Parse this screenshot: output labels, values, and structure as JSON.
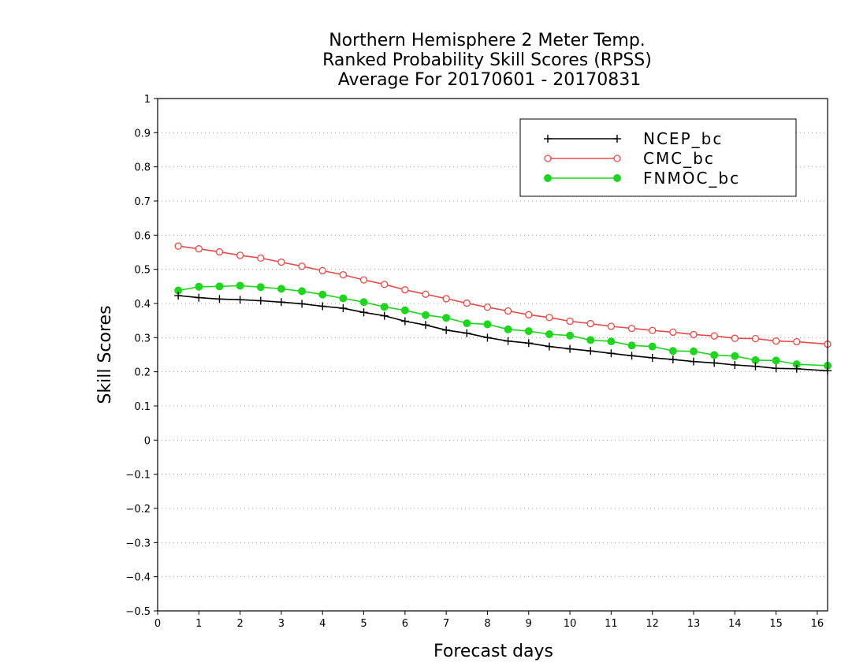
{
  "chart_data": {
    "type": "line",
    "title": [
      "Northern Hemisphere 2 Meter Temp.",
      "Ranked Probability Skill Scores (RPSS)",
      "Average For 20170601 - 20170831"
    ],
    "xlabel": "Forecast days",
    "ylabel": "Skill Scores",
    "xlim": [
      0,
      16.25
    ],
    "ylim": [
      -0.5,
      1
    ],
    "x_ticks": [
      0,
      1,
      2,
      3,
      4,
      5,
      6,
      7,
      8,
      9,
      10,
      11,
      12,
      13,
      14,
      15,
      16
    ],
    "y_ticks": [
      -0.5,
      -0.4,
      -0.3,
      -0.2,
      -0.1,
      0,
      0.1,
      0.2,
      0.3,
      0.4,
      0.5,
      0.6,
      0.7,
      0.8,
      0.9,
      1
    ],
    "grid": true,
    "legend_position": "top-right",
    "x": [
      0.5,
      1,
      1.5,
      2,
      2.5,
      3,
      3.5,
      4,
      4.5,
      5,
      5.5,
      6,
      6.5,
      7,
      7.5,
      8,
      8.5,
      9,
      9.5,
      10,
      10.5,
      11,
      11.5,
      12,
      12.5,
      13,
      13.5,
      14,
      14.5,
      15,
      15.5,
      16.25
    ],
    "series": [
      {
        "name": "NCEP_bc",
        "color": "#000000",
        "marker": "plus",
        "values": [
          0.423,
          0.417,
          0.413,
          0.411,
          0.408,
          0.404,
          0.399,
          0.392,
          0.386,
          0.374,
          0.364,
          0.348,
          0.337,
          0.322,
          0.313,
          0.3,
          0.29,
          0.284,
          0.274,
          0.267,
          0.261,
          0.254,
          0.247,
          0.241,
          0.236,
          0.23,
          0.226,
          0.22,
          0.216,
          0.21,
          0.209,
          0.203
        ]
      },
      {
        "name": "CMC_bc",
        "color": "#e84a4a",
        "marker": "open-circle",
        "values": [
          0.568,
          0.56,
          0.551,
          0.541,
          0.533,
          0.521,
          0.509,
          0.496,
          0.484,
          0.469,
          0.456,
          0.44,
          0.427,
          0.414,
          0.401,
          0.389,
          0.378,
          0.367,
          0.359,
          0.348,
          0.341,
          0.333,
          0.327,
          0.321,
          0.316,
          0.309,
          0.305,
          0.298,
          0.297,
          0.29,
          0.288,
          0.281
        ]
      },
      {
        "name": "FNMOC_bc",
        "color": "#1ed61e",
        "marker": "filled-circle",
        "values": [
          0.438,
          0.449,
          0.45,
          0.452,
          0.448,
          0.443,
          0.436,
          0.426,
          0.415,
          0.404,
          0.39,
          0.38,
          0.366,
          0.358,
          0.342,
          0.339,
          0.324,
          0.319,
          0.31,
          0.306,
          0.293,
          0.289,
          0.277,
          0.274,
          0.261,
          0.26,
          0.249,
          0.246,
          0.234,
          0.233,
          0.222,
          0.218
        ]
      }
    ]
  }
}
